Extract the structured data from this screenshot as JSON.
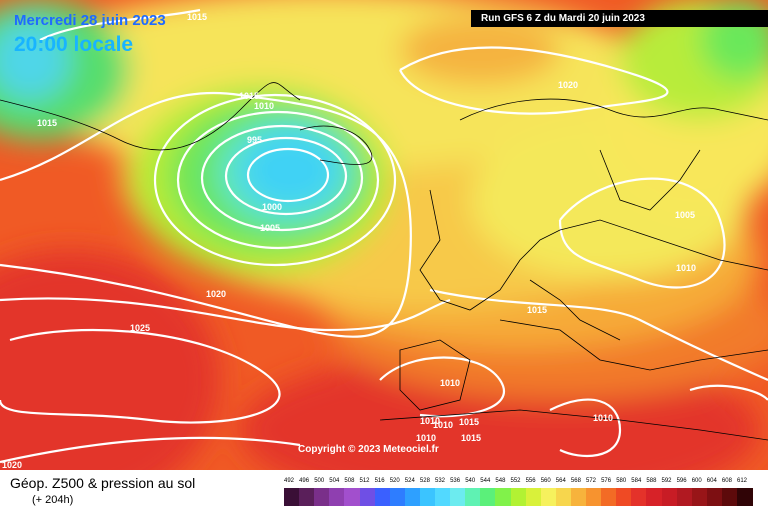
{
  "header": {
    "date": "Mercredi 28 juin 2023",
    "time": "20:00 locale",
    "run": "Run GFS 6 Z du Mardi 20 juin 2023"
  },
  "copyright": "Copyright © 2023 Meteociel.fr",
  "legend": {
    "title": "Géop. Z500 & pression au sol",
    "subtitle": "(+ 204h)",
    "ticks": [
      "492",
      "496",
      "500",
      "504",
      "508",
      "512",
      "516",
      "520",
      "524",
      "528",
      "532",
      "536",
      "540",
      "544",
      "548",
      "552",
      "556",
      "560",
      "564",
      "568",
      "572",
      "576",
      "580",
      "584",
      "588",
      "592",
      "596",
      "600",
      "604",
      "608",
      "612"
    ],
    "colors": [
      "#3a0f36",
      "#5a1f5a",
      "#7a2f8a",
      "#8f3fb0",
      "#a24fcd",
      "#6f4fe5",
      "#3a60ff",
      "#2e7dff",
      "#2ea0ff",
      "#3bc4ff",
      "#52d9ff",
      "#6cebef",
      "#5ff2b3",
      "#5bf07a",
      "#81f24a",
      "#b2f233",
      "#d9f13a",
      "#f6f15d",
      "#f7d64d",
      "#f7b33c",
      "#f7932f",
      "#f36b25",
      "#ef4a24",
      "#e4322a",
      "#d72228",
      "#c81c25",
      "#b11921",
      "#981518",
      "#7d0f12",
      "#5d0a0b",
      "#300406"
    ]
  },
  "isobar_labels": [
    "1015",
    "1015",
    "1015",
    "1010",
    "995",
    "1000",
    "1005",
    "1020",
    "1025",
    "1020",
    "1005",
    "1010",
    "1015",
    "1010",
    "1010",
    "1010",
    "1015",
    "1010",
    "1015",
    "1010",
    "1020"
  ]
}
